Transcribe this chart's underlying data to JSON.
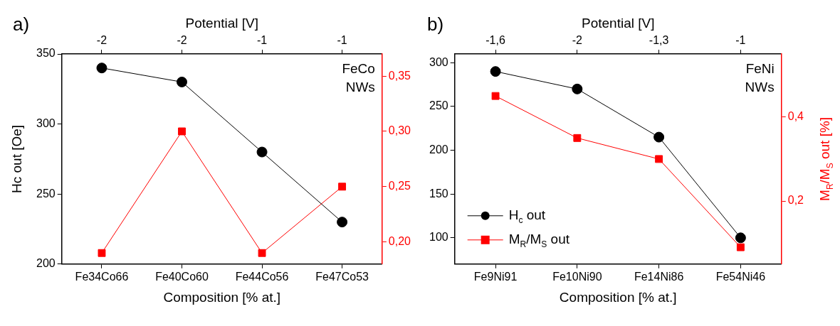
{
  "chart_data": [
    {
      "type": "line",
      "title": "a)",
      "xlabel": "Composition [% at.]",
      "x2label": "Potential [V]",
      "ylabel": "Hc out [Oe]",
      "categories": [
        "Fe34Co66",
        "Fe40Co60",
        "Fe44Co56",
        "Fe47Co53"
      ],
      "ylim": [
        200,
        350
      ],
      "yticks": [
        200,
        250,
        300,
        350
      ],
      "y2lim": [
        0.18,
        0.37
      ],
      "y2ticks": [
        {
          "value": 0.2,
          "label": "0,20"
        },
        {
          "value": 0.25,
          "label": "0,25"
        },
        {
          "value": 0.3,
          "label": "0,30"
        },
        {
          "value": 0.35,
          "label": "0,35"
        }
      ],
      "annotations": [
        "FeCo\nNWs",
        {
          "text": "-2",
          "x": "Fe34Co66"
        },
        {
          "text": "-2",
          "x": "Fe40Co60"
        },
        {
          "text": "-1",
          "x": "Fe44Co56"
        },
        {
          "text": "-1",
          "x": "Fe47Co53"
        }
      ],
      "series": [
        {
          "color": "#000000",
          "marker": "circle",
          "values": [
            340,
            330,
            280,
            230
          ]
        },
        {
          "color": "#ff0000",
          "marker": "square",
          "axis": "y2",
          "values": [
            0.19,
            0.3,
            0.19,
            0.25
          ]
        }
      ]
    },
    {
      "type": "line",
      "title": "b)",
      "xlabel": "Composition [% at.]",
      "x2label": "Potential [V]",
      "y2label": "M$_{R}$/M$_{S}$ out [%]",
      "categories": [
        "Fe9Ni91",
        "Fe10Ni90",
        "Fe14Ni86",
        "Fe54Ni46"
      ],
      "ylim": [
        70,
        310
      ],
      "yticks": [
        100,
        150,
        200,
        250,
        300
      ],
      "y2lim": [
        0.05,
        0.55
      ],
      "y2ticks": [
        {
          "value": 0.2,
          "label": "0,2"
        },
        {
          "value": 0.4,
          "label": "0,4"
        }
      ],
      "annotations": [
        "FeNi\nNWs",
        {
          "text": "-1,6",
          "x": "Fe9Ni91"
        },
        {
          "text": "-2",
          "x": "Fe10Ni90"
        },
        {
          "text": "-1,3",
          "x": "Fe14Ni86"
        },
        {
          "text": "-1",
          "x": "Fe54Ni46"
        }
      ],
      "legend": "bottom left",
      "series": [
        {
          "name": "H$_{c}$ out",
          "color": "#000000",
          "marker": "circle",
          "values": [
            290,
            270,
            215,
            100
          ]
        },
        {
          "name": "M$_{R}$/M$_{S}$ out",
          "color": "#ff0000",
          "marker": "square",
          "axis": "y2",
          "values": [
            0.45,
            0.35,
            0.3,
            0.09
          ]
        }
      ]
    }
  ]
}
